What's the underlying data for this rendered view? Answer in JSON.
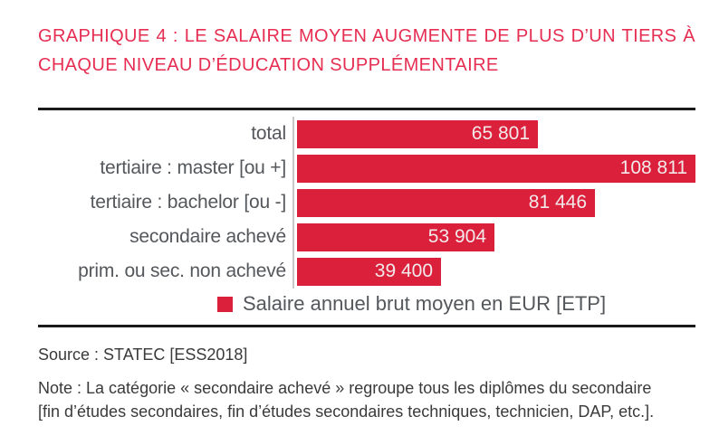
{
  "title": {
    "line1": "GRAPHIQUE 4 : LE SALAIRE MOYEN AUGMENTE DE PLUS D’UN TIERS À",
    "line2": "CHAQUE NIVEAU D’ÉDUCATION SUPPLÉMENTAIRE"
  },
  "chart_data": {
    "type": "bar",
    "orientation": "horizontal",
    "categories": [
      "total",
      "tertiaire : master [ou +]",
      "tertiaire : bachelor [ou -]",
      "secondaire achevé",
      "prim. ou sec. non achevé"
    ],
    "values": [
      65801,
      108811,
      81446,
      53904,
      39400
    ],
    "value_labels": [
      "65 801",
      "108 811",
      "81 446",
      "53 904",
      "39 400"
    ],
    "legend": "Salaire annuel brut moyen en EUR [ETP]",
    "legend_position": "bottom",
    "xlim": [
      0,
      108811
    ],
    "grid": false,
    "value_labels_position": "inside-end",
    "bar_color": "#DB203C",
    "value_label_color": "#F2E9EA",
    "category_label_color": "#54575B",
    "axis_line_color": "#C8C8C8",
    "frame_rule_color": "#1A1A1A"
  },
  "footer": {
    "source": "Source : STATEC [ESS2018]",
    "note_line1": "Note : La catégorie « secondaire achevé » regroupe tous les diplômes du secondaire",
    "note_line2": "[fin d’études secondaires, fin d’études secondaires techniques, technicien, DAP, etc.]."
  },
  "colors": {
    "title_red": "#E62E52",
    "bar_red": "#DB203C",
    "background": "#FFFFFF"
  }
}
